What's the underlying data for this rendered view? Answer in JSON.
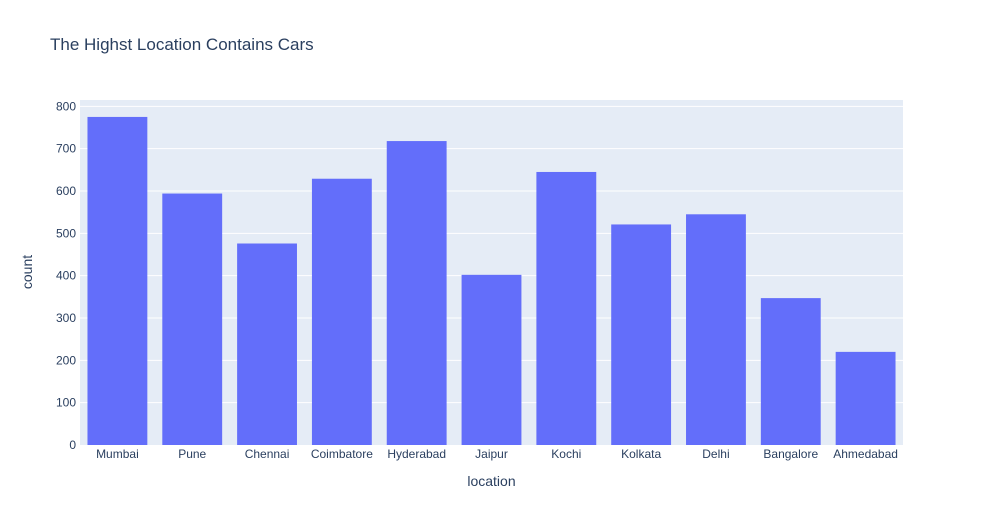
{
  "chart_data": {
    "type": "bar",
    "title": "The Highst Location Contains Cars",
    "xlabel": "location",
    "ylabel": "count",
    "categories": [
      "Mumbai",
      "Pune",
      "Chennai",
      "Coimbatore",
      "Hyderabad",
      "Jaipur",
      "Kochi",
      "Kolkata",
      "Delhi",
      "Bangalore",
      "Ahmedabad"
    ],
    "values": [
      775,
      594,
      476,
      629,
      718,
      402,
      645,
      521,
      545,
      347,
      220
    ],
    "ylim": [
      0,
      815
    ],
    "yticks": [
      0,
      100,
      200,
      300,
      400,
      500,
      600,
      700,
      800
    ],
    "grid": true,
    "legend": "none"
  },
  "colors": {
    "bar": "#636efa",
    "plot_background": "#e5ecf6",
    "grid": "#ffffff",
    "text": "#2a3f5f"
  }
}
